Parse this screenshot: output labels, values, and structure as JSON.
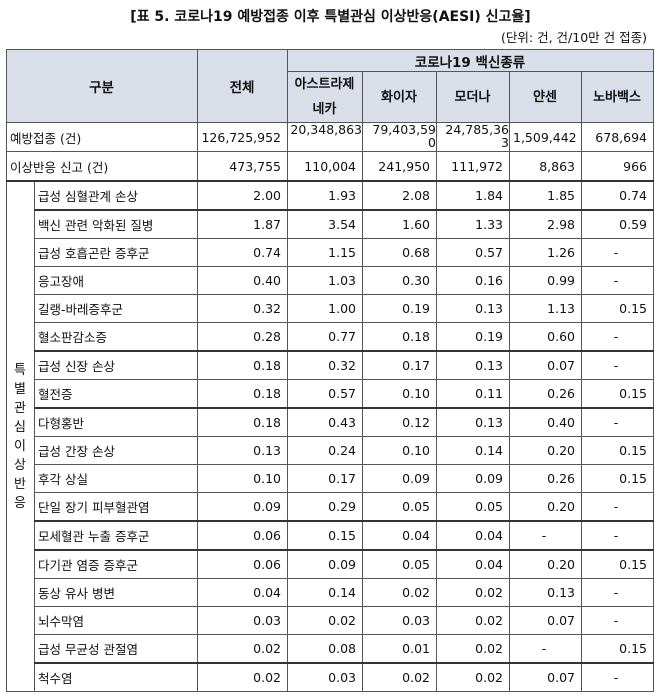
{
  "title": "[표 5. 코로나19 예방접종 이후 특별관심 이상반응(AESI) 신고율]",
  "unit": "(단위: 건, 건/10만 건 접종)",
  "header": {
    "category": "구분",
    "total": "전체",
    "vaccine_group": "코로나19 백신종류",
    "vaccines": [
      "아스트라제네카",
      "화이자",
      "모더나",
      "얀센",
      "노바백스"
    ]
  },
  "summary_rows": [
    {
      "label": "예방접종 (건)",
      "values": [
        "126,725,952",
        "20,348,863",
        "79,403,590",
        "24,785,363",
        "1,509,442",
        "678,694"
      ]
    },
    {
      "label": "이상반응 신고 (건)",
      "values": [
        "473,755",
        "110,004",
        "241,950",
        "111,972",
        "8,863",
        "966"
      ]
    }
  ],
  "side_label": "특별관심 이상반응",
  "aesi_rows": [
    {
      "label": "급성 심혈관계 손상",
      "values": [
        "2.00",
        "1.93",
        "2.08",
        "1.84",
        "1.85",
        "0.74"
      ]
    },
    {
      "label": "백신 관련 악화된 질병",
      "values": [
        "1.87",
        "3.54",
        "1.60",
        "1.33",
        "2.98",
        "0.59"
      ]
    },
    {
      "label": "급성 호흡곤란 증후군",
      "values": [
        "0.74",
        "1.15",
        "0.68",
        "0.57",
        "1.26",
        "-"
      ]
    },
    {
      "label": "응고장애",
      "values": [
        "0.40",
        "1.03",
        "0.30",
        "0.16",
        "0.99",
        "-"
      ]
    },
    {
      "label": "길랭-바레증후군",
      "values": [
        "0.32",
        "1.00",
        "0.19",
        "0.13",
        "1.13",
        "0.15"
      ]
    },
    {
      "label": "혈소판감소증",
      "values": [
        "0.28",
        "0.77",
        "0.18",
        "0.19",
        "0.60",
        "-"
      ]
    },
    {
      "label": "급성 신장 손상",
      "values": [
        "0.18",
        "0.32",
        "0.17",
        "0.13",
        "0.07",
        "-"
      ]
    },
    {
      "label": "혈전증",
      "values": [
        "0.18",
        "0.57",
        "0.10",
        "0.11",
        "0.26",
        "0.15"
      ]
    },
    {
      "label": "다형홍반",
      "values": [
        "0.18",
        "0.43",
        "0.12",
        "0.13",
        "0.40",
        "-"
      ]
    },
    {
      "label": "급성 간장 손상",
      "values": [
        "0.13",
        "0.24",
        "0.10",
        "0.14",
        "0.20",
        "0.15"
      ]
    },
    {
      "label": "후각 상실",
      "values": [
        "0.10",
        "0.17",
        "0.09",
        "0.09",
        "0.26",
        "0.15"
      ]
    },
    {
      "label": "단일 장기 피부혈관염",
      "values": [
        "0.09",
        "0.29",
        "0.05",
        "0.05",
        "0.20",
        "-"
      ]
    },
    {
      "label": "모세혈관 누출 증후군",
      "values": [
        "0.06",
        "0.15",
        "0.04",
        "0.04",
        "-",
        "-"
      ]
    },
    {
      "label": "다기관 염증 증후군",
      "values": [
        "0.06",
        "0.09",
        "0.05",
        "0.04",
        "0.20",
        "0.15"
      ]
    },
    {
      "label": "동상 유사 병변",
      "values": [
        "0.04",
        "0.14",
        "0.02",
        "0.02",
        "0.13",
        "-"
      ]
    },
    {
      "label": "뇌수막염",
      "values": [
        "0.03",
        "0.02",
        "0.03",
        "0.02",
        "0.07",
        "-"
      ]
    },
    {
      "label": "급성 무균성 관절염",
      "values": [
        "0.02",
        "0.08",
        "0.01",
        "0.02",
        "-",
        "0.15"
      ]
    },
    {
      "label": "척수염",
      "values": [
        "0.02",
        "0.03",
        "0.02",
        "0.02",
        "0.07",
        "-"
      ]
    }
  ]
}
